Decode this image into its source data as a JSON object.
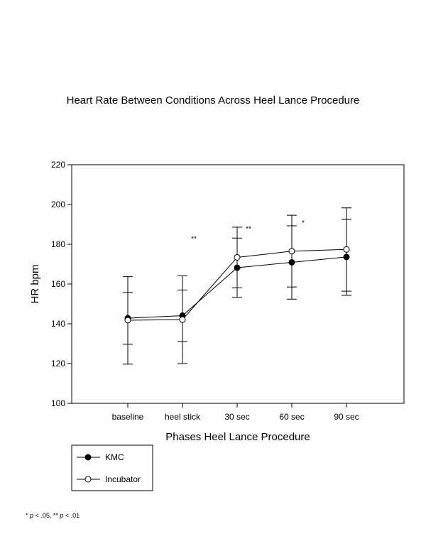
{
  "chart_data": {
    "type": "line",
    "title": "Heart Rate Between Conditions Across Heel Lance Procedure",
    "xlabel": "Phases Heel Lance Procedure",
    "ylabel": "HR bpm",
    "ylim": [
      100,
      220
    ],
    "yticks": [
      100,
      120,
      140,
      160,
      180,
      200,
      220
    ],
    "categories": [
      "baseline",
      "heel stick",
      "30 sec",
      "60 sec",
      "90 sec"
    ],
    "grid": false,
    "legend_position": "bottom-left, outside plot",
    "series": [
      {
        "name": "KMC",
        "marker": "filled-circle",
        "color": "#000000",
        "values": [
          142.8,
          144.1,
          168.2,
          170.9,
          173.6
        ],
        "error_low": [
          129.7,
          131.1,
          153.3,
          152.4,
          154.3
        ],
        "error_high": [
          155.8,
          157.0,
          183.1,
          189.3,
          192.5
        ]
      },
      {
        "name": "Incubator",
        "marker": "open-circle",
        "color": "#000000",
        "values": [
          141.8,
          142.1,
          173.4,
          176.5,
          177.4
        ],
        "error_low": [
          119.7,
          120.0,
          158.1,
          158.5,
          156.4
        ],
        "error_high": [
          163.7,
          164.1,
          188.6,
          194.6,
          198.3
        ]
      }
    ],
    "annotations": [
      {
        "text": "**",
        "category_index": 1,
        "y": 183
      },
      {
        "text": "**",
        "category_index": 2,
        "y": 188
      },
      {
        "text": "*",
        "category_index": 3,
        "y": 191
      }
    ],
    "footnote": {
      "sig1_symbol": "*",
      "sig1_p": "p",
      "sig1_rest": " < .05, ",
      "sig2_symbol": "**",
      "sig2_p": "p",
      "sig2_rest": " < .01"
    }
  }
}
